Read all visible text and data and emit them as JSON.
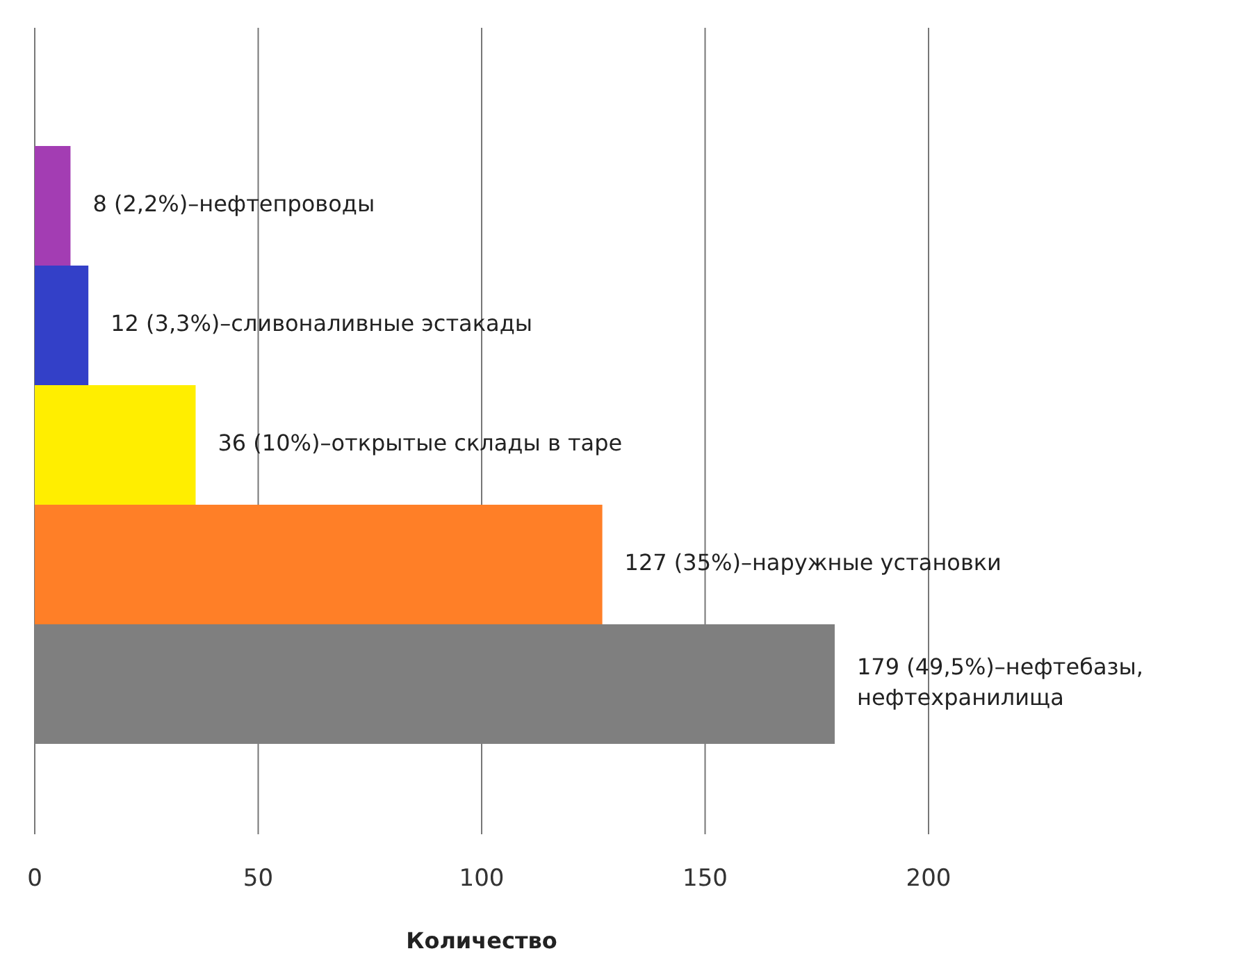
{
  "chart_data": {
    "type": "bar",
    "orientation": "horizontal",
    "xlabel": "Количество",
    "categories": [
      null,
      null,
      null,
      null,
      null
    ],
    "values": [
      8,
      12,
      36,
      127,
      179
    ],
    "colors": [
      "#a33db3",
      "#3340c8",
      "#ffee00",
      "#ff7f27",
      "#7f7f7f"
    ],
    "value_labels": [
      "8 (2,2%)–нефтепроводы",
      "12 (3,3%)–сливоналивные эстакады",
      "36 (10%)–открытые склады в таре",
      "127 (35%)–наружные установки",
      "179 (49,5%)–нефтебазы, нефтехранилища"
    ],
    "xlim": [
      0,
      200
    ],
    "xticks": [
      0,
      50,
      100,
      150,
      200
    ],
    "grid": "x"
  }
}
